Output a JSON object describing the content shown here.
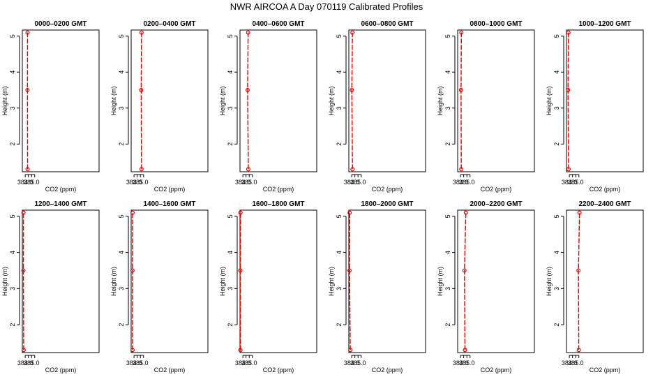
{
  "title": "NWR AIRCOA A  Day 070119  Calibrated Profiles",
  "colors": {
    "line": "#dd0000",
    "point": "#dd0000",
    "frame": "#000000"
  },
  "chart_data": [
    {
      "type": "line",
      "title": "0000–0200 GMT",
      "xlabel": "CO2 (ppm)",
      "ylabel": "Height (m)",
      "xlim": [
        383.55,
        395.62
      ],
      "ylim": [
        1.23,
        5.17
      ],
      "xticks": [
        384.0,
        384.5,
        385.0,
        385.5
      ],
      "xticklabels": [
        "384.0",
        "",
        "385.0",
        ""
      ],
      "yticks": [
        2,
        3,
        4,
        5
      ],
      "yticklabels": [
        "2",
        "3",
        "4",
        "5"
      ],
      "series": [
        {
          "points": [
            [
              384.38,
              1.3
            ],
            [
              384.36,
              3.5
            ],
            [
              384.37,
              5.1
            ]
          ]
        }
      ]
    },
    {
      "type": "line",
      "title": "0200–0400 GMT",
      "xlabel": "CO2 (ppm)",
      "ylabel": "Height (m)",
      "xlim": [
        383.55,
        395.62
      ],
      "ylim": [
        1.23,
        5.17
      ],
      "xticks": [
        384.0,
        384.5,
        385.0,
        385.5
      ],
      "xticklabels": [
        "384.0",
        "",
        "385.0",
        ""
      ],
      "yticks": [
        2,
        3,
        4,
        5
      ],
      "yticklabels": [
        "2",
        "3",
        "4",
        "5"
      ],
      "series": [
        {
          "points": [
            [
              385.18,
              1.3
            ],
            [
              385.13,
              3.5
            ],
            [
              385.18,
              5.1
            ]
          ]
        }
      ]
    },
    {
      "type": "line",
      "title": "0400–0600 GMT",
      "xlabel": "CO2 (ppm)",
      "ylabel": "Height (m)",
      "xlim": [
        383.55,
        395.62
      ],
      "ylim": [
        1.23,
        5.17
      ],
      "xticks": [
        384.0,
        384.5,
        385.0,
        385.5
      ],
      "xticklabels": [
        "384.0",
        "",
        "385.0",
        ""
      ],
      "yticks": [
        2,
        3,
        4,
        5
      ],
      "yticklabels": [
        "2",
        "3",
        "4",
        "5"
      ],
      "series": [
        {
          "points": [
            [
              384.86,
              1.3
            ],
            [
              384.75,
              3.5
            ],
            [
              384.83,
              5.1
            ]
          ]
        }
      ]
    },
    {
      "type": "line",
      "title": "0600–0800 GMT",
      "xlabel": "CO2 (ppm)",
      "ylabel": "Height (m)",
      "xlim": [
        383.55,
        395.62
      ],
      "ylim": [
        1.23,
        5.17
      ],
      "xticks": [
        384.0,
        384.5,
        385.0,
        385.5
      ],
      "xticklabels": [
        "384.0",
        "",
        "385.0",
        ""
      ],
      "yticks": [
        2,
        3,
        4,
        5
      ],
      "yticklabels": [
        "2",
        "3",
        "4",
        "5"
      ],
      "series": [
        {
          "points": [
            [
              384.13,
              1.3
            ],
            [
              384.02,
              3.5
            ],
            [
              384.12,
              5.1
            ]
          ]
        }
      ]
    },
    {
      "type": "line",
      "title": "0800–1000 GMT",
      "xlabel": "CO2 (ppm)",
      "ylabel": "Height (m)",
      "xlim": [
        383.55,
        395.62
      ],
      "ylim": [
        1.23,
        5.17
      ],
      "xticks": [
        384.0,
        384.5,
        385.0,
        385.5
      ],
      "xticklabels": [
        "384.0",
        "",
        "385.0",
        ""
      ],
      "yticks": [
        2,
        3,
        4,
        5
      ],
      "yticklabels": [
        "2",
        "3",
        "4",
        "5"
      ],
      "series": [
        {
          "points": [
            [
              384.12,
              1.3
            ],
            [
              384.08,
              3.5
            ],
            [
              384.13,
              5.1
            ]
          ]
        }
      ]
    },
    {
      "type": "line",
      "title": "1000–1200 GMT",
      "xlabel": "CO2 (ppm)",
      "ylabel": "Height (m)",
      "xlim": [
        383.55,
        395.62
      ],
      "ylim": [
        1.23,
        5.17
      ],
      "xticks": [
        384.0,
        384.5,
        385.0,
        385.5
      ],
      "xticklabels": [
        "384.0",
        "",
        "385.0",
        ""
      ],
      "yticks": [
        2,
        3,
        4,
        5
      ],
      "yticklabels": [
        "2",
        "3",
        "4",
        "5"
      ],
      "series": [
        {
          "points": [
            [
              383.87,
              1.3
            ],
            [
              383.79,
              3.5
            ],
            [
              383.85,
              5.1
            ]
          ]
        }
      ]
    },
    {
      "type": "line",
      "title": "1200–1400 GMT",
      "xlabel": "CO2 (ppm)",
      "ylabel": "Height (m)",
      "xlim": [
        383.55,
        395.62
      ],
      "ylim": [
        1.23,
        5.17
      ],
      "xticks": [
        384.0,
        384.5,
        385.0,
        385.5
      ],
      "xticklabels": [
        "384.0",
        "",
        "385.0",
        ""
      ],
      "yticks": [
        2,
        3,
        4,
        5
      ],
      "yticklabels": [
        "2",
        "3",
        "4",
        "5"
      ],
      "series": [
        {
          "points": [
            [
              383.76,
              1.3
            ],
            [
              383.72,
              3.5
            ],
            [
              383.73,
              5.1
            ]
          ]
        }
      ]
    },
    {
      "type": "line",
      "title": "1400–1600 GMT",
      "xlabel": "CO2 (ppm)",
      "ylabel": "Height (m)",
      "xlim": [
        383.55,
        395.62
      ],
      "ylim": [
        1.23,
        5.17
      ],
      "xticks": [
        384.0,
        384.5,
        385.0,
        385.5
      ],
      "xticklabels": [
        "384.0",
        "",
        "385.0",
        ""
      ],
      "yticks": [
        2,
        3,
        4,
        5
      ],
      "yticklabels": [
        "2",
        "3",
        "4",
        "5"
      ],
      "series": [
        {
          "points": [
            [
              383.77,
              1.3
            ],
            [
              383.76,
              3.5
            ],
            [
              383.77,
              5.1
            ]
          ]
        }
      ]
    },
    {
      "type": "line",
      "title": "1600–1800 GMT",
      "xlabel": "CO2 (ppm)",
      "ylabel": "Height (m)",
      "xlim": [
        383.55,
        395.62
      ],
      "ylim": [
        1.23,
        5.17
      ],
      "xticks": [
        384.0,
        384.5,
        385.0,
        385.5
      ],
      "xticklabels": [
        "384.0",
        "",
        "385.0",
        ""
      ],
      "yticks": [
        2,
        3,
        4,
        5
      ],
      "yticklabels": [
        "2",
        "3",
        "4",
        "5"
      ],
      "series": [
        {
          "points": [
            [
              383.62,
              1.3
            ],
            [
              383.6,
              3.5
            ],
            [
              383.63,
              5.1
            ]
          ]
        }
      ]
    },
    {
      "type": "line",
      "title": "1800–2000 GMT",
      "xlabel": "CO2 (ppm)",
      "ylabel": "Height (m)",
      "xlim": [
        383.55,
        395.62
      ],
      "ylim": [
        1.23,
        5.17
      ],
      "xticks": [
        384.0,
        384.5,
        385.0,
        385.5
      ],
      "xticklabels": [
        "384.0",
        "",
        "385.0",
        ""
      ],
      "yticks": [
        2,
        3,
        4,
        5
      ],
      "yticklabels": [
        "2",
        "3",
        "4",
        "5"
      ],
      "series": [
        {
          "points": [
            [
              383.78,
              1.3
            ],
            [
              383.66,
              3.5
            ],
            [
              383.68,
              5.1
            ]
          ]
        }
      ]
    },
    {
      "type": "line",
      "title": "2000–2200 GMT",
      "xlabel": "CO2 (ppm)",
      "ylabel": "Height (m)",
      "xlim": [
        383.55,
        395.62
      ],
      "ylim": [
        1.23,
        5.17
      ],
      "xticks": [
        384.0,
        384.5,
        385.0,
        385.5
      ],
      "xticklabels": [
        "384.0",
        "",
        "385.0",
        ""
      ],
      "yticks": [
        2,
        3,
        4,
        5
      ],
      "yticklabels": [
        "2",
        "3",
        "4",
        "5"
      ],
      "series": [
        {
          "points": [
            [
              384.7,
              1.3
            ],
            [
              384.62,
              3.5
            ],
            [
              384.84,
              5.1
            ]
          ]
        }
      ]
    },
    {
      "type": "line",
      "title": "2200–2400 GMT",
      "xlabel": "CO2 (ppm)",
      "ylabel": "Height (m)",
      "xlim": [
        383.55,
        395.62
      ],
      "ylim": [
        1.23,
        5.17
      ],
      "xticks": [
        384.0,
        384.5,
        385.0,
        385.5
      ],
      "xticklabels": [
        "384.0",
        "",
        "385.0",
        ""
      ],
      "yticks": [
        2,
        3,
        4,
        5
      ],
      "yticklabels": [
        "2",
        "3",
        "4",
        "5"
      ],
      "series": [
        {
          "points": [
            [
              385.48,
              1.3
            ],
            [
              385.43,
              3.5
            ],
            [
              385.6,
              5.1
            ]
          ]
        }
      ]
    }
  ]
}
